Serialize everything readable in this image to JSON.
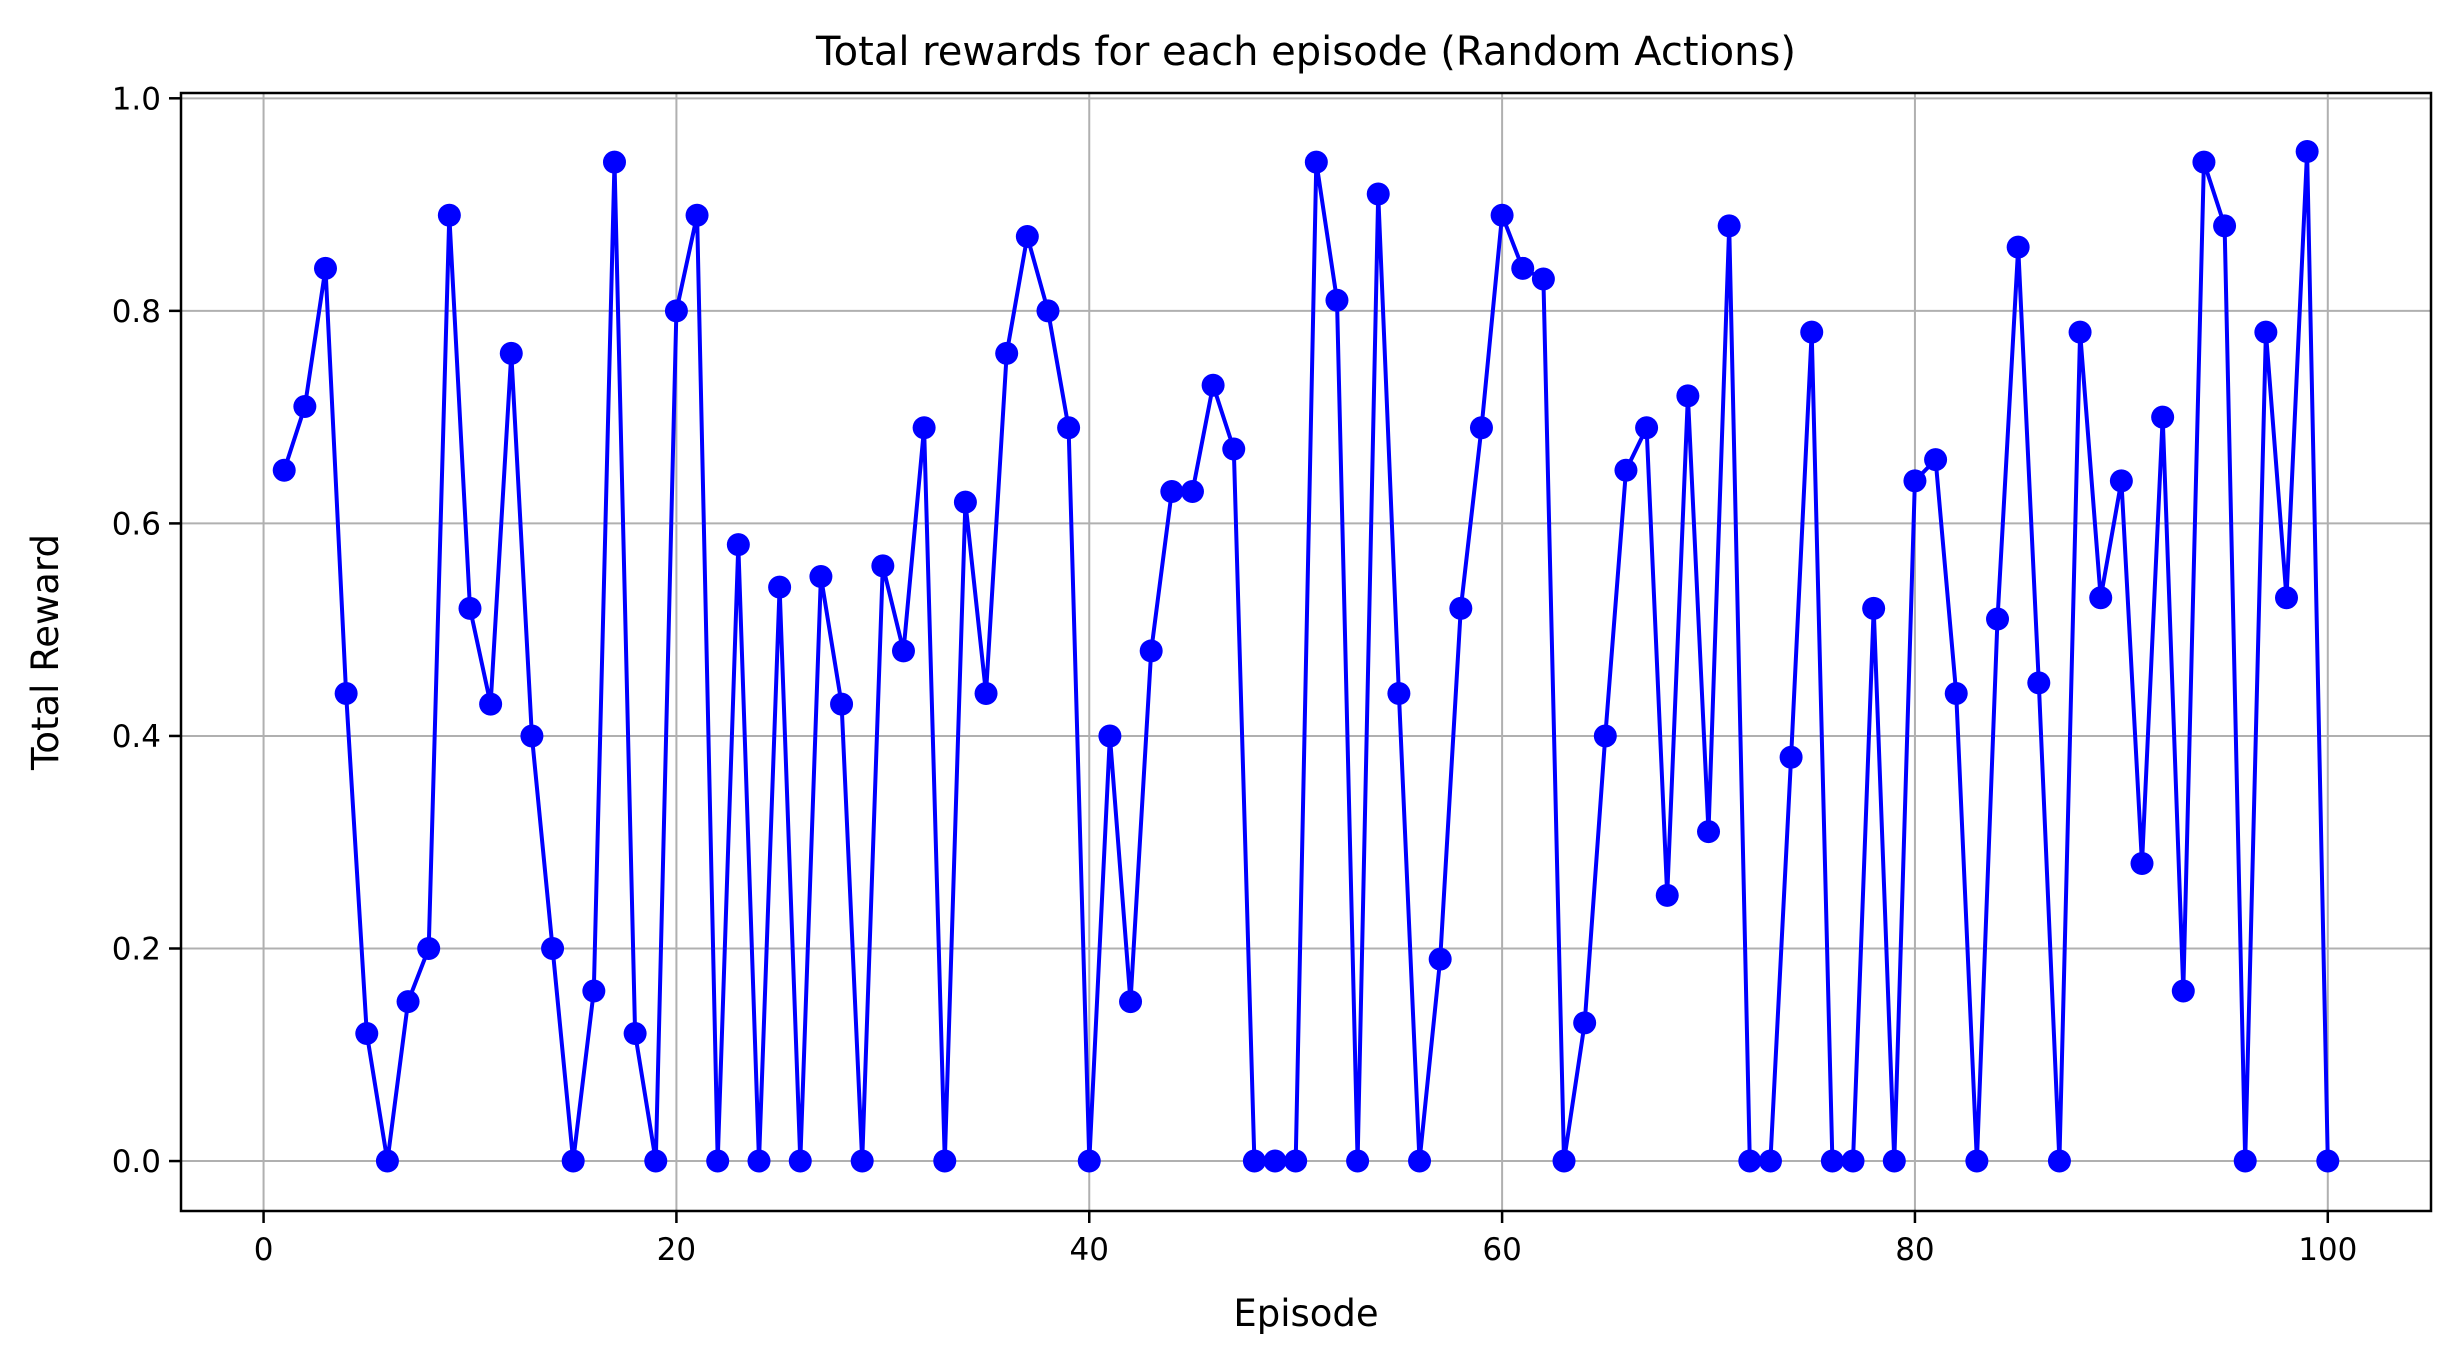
{
  "chart_data": {
    "type": "line",
    "title": "Total rewards for each episode (Random Actions)",
    "xlabel": "Episode",
    "ylabel": "Total Reward",
    "xlim": [
      -4,
      105
    ],
    "ylim": [
      -0.047,
      1.005
    ],
    "xticks": [
      0,
      20,
      40,
      60,
      80,
      100
    ],
    "yticks": [
      0.0,
      0.2,
      0.4,
      0.6,
      0.8,
      1.0
    ],
    "ytick_labels": [
      "0.0",
      "0.2",
      "0.4",
      "0.6",
      "0.8",
      "1.0"
    ],
    "grid": true,
    "color": "#0000ff",
    "marker": "circle",
    "series": [
      {
        "x": [
          1,
          2,
          3,
          4,
          5,
          6,
          7,
          8,
          9,
          10,
          11,
          12,
          13,
          14,
          15,
          16,
          17,
          18,
          19,
          20,
          21,
          22,
          23,
          24,
          25,
          26,
          27,
          28,
          29,
          30,
          31,
          32,
          33,
          34,
          35,
          36,
          37,
          38,
          39,
          40,
          41,
          42,
          43,
          44,
          45,
          46,
          47,
          48,
          49,
          50,
          51,
          52,
          53,
          54,
          55,
          56,
          57,
          58,
          59,
          60,
          61,
          62,
          63,
          64,
          65,
          66,
          67,
          68,
          69,
          70,
          71,
          72,
          73,
          74,
          75,
          76,
          77,
          78,
          79,
          80,
          81,
          82,
          83,
          84,
          85,
          86,
          87,
          88,
          89,
          90,
          91,
          92,
          93,
          94,
          95,
          96,
          97,
          98,
          99,
          100
        ],
        "y": [
          0.65,
          0.71,
          0.84,
          0.44,
          0.12,
          0.0,
          0.15,
          0.2,
          0.89,
          0.52,
          0.43,
          0.76,
          0.4,
          0.2,
          0.0,
          0.16,
          0.94,
          0.12,
          0.0,
          0.8,
          0.89,
          0.0,
          0.58,
          0.0,
          0.54,
          0.0,
          0.55,
          0.43,
          0.0,
          0.56,
          0.48,
          0.69,
          0.0,
          0.62,
          0.44,
          0.76,
          0.87,
          0.8,
          0.69,
          0.0,
          0.4,
          0.15,
          0.48,
          0.63,
          0.63,
          0.73,
          0.67,
          0.0,
          0.0,
          0.0,
          0.94,
          0.81,
          0.0,
          0.91,
          0.44,
          0.0,
          0.19,
          0.52,
          0.69,
          0.89,
          0.84,
          0.83,
          0.0,
          0.13,
          0.4,
          0.65,
          0.69,
          0.25,
          0.72,
          0.31,
          0.88,
          0.0,
          0.0,
          0.38,
          0.78,
          0.0,
          0.0,
          0.52,
          0.0,
          0.64,
          0.66,
          0.44,
          0.0,
          0.51,
          0.86,
          0.45,
          0.0,
          0.78,
          0.53,
          0.64,
          0.28,
          0.7,
          0.16,
          0.94,
          0.88,
          0.0,
          0.78,
          0.53,
          0.95,
          0.0
        ]
      }
    ]
  }
}
